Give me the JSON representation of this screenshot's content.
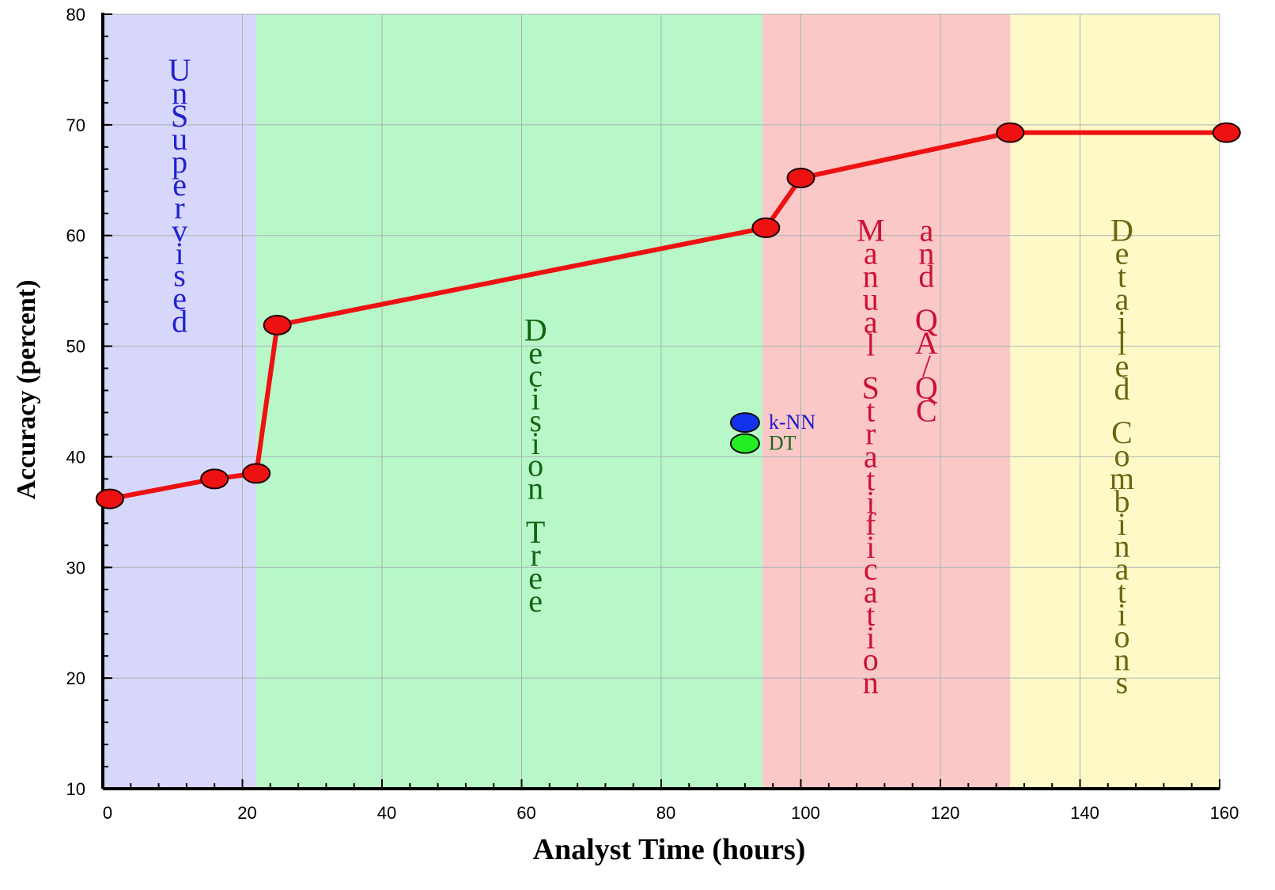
{
  "chart_data": {
    "type": "line",
    "title": "",
    "xlabel": "Analyst Time (hours)",
    "ylabel": "Accuracy (percent)",
    "xlim": [
      0,
      160
    ],
    "ylim": [
      10,
      80
    ],
    "xticks": [
      0,
      20,
      40,
      60,
      80,
      100,
      120,
      140,
      160
    ],
    "yticks": [
      10,
      20,
      30,
      40,
      50,
      60,
      70,
      80
    ],
    "x_minor_step": 4,
    "y_minor_step": 2,
    "grid": true,
    "series": [
      {
        "color": "#ee1111",
        "points": [
          {
            "x": 1,
            "y": 36.2
          },
          {
            "x": 16,
            "y": 38.0
          },
          {
            "x": 22,
            "y": 38.5
          },
          {
            "x": 25,
            "y": 51.9
          },
          {
            "x": 95,
            "y": 60.7
          },
          {
            "x": 100,
            "y": 65.2
          },
          {
            "x": 130,
            "y": 69.3
          },
          {
            "x": 161,
            "y": 69.3
          }
        ]
      }
    ],
    "extra_points": [
      {
        "name": "k-NN",
        "x": 92,
        "y": 43.1,
        "color": "#1133ee",
        "label_color": "#1a1acc"
      },
      {
        "name": "DT",
        "x": 92,
        "y": 41.2,
        "color": "#22ee22",
        "label_color": "#1a6a1a"
      }
    ],
    "regions": [
      {
        "x0": 0,
        "x1": 22,
        "color": "#d7d7fb",
        "text_color": "#2222cc",
        "label_columns": [
          "UnSupervised"
        ],
        "label_x": 11,
        "label_top": 75
      },
      {
        "x0": 22,
        "x1": 94.5,
        "color": "#b8f7c8",
        "text_color": "#116611",
        "label_columns": [
          "Decision Tree"
        ],
        "label_x": 62,
        "label_top": 51.5
      },
      {
        "x0": 94.5,
        "x1": 130,
        "color": "#fbc8c8",
        "text_color": "#cc1133",
        "label_columns": [
          "Manual Stratification",
          "and QA/QC"
        ],
        "label_column_x": [
          110,
          118
        ],
        "label_top": 60.5
      },
      {
        "x0": 130,
        "x1": 160,
        "color": "#fdfac8",
        "text_color": "#6b6612",
        "label_columns": [
          "Detailed Combinations"
        ],
        "label_x": 146,
        "label_top": 60.5
      }
    ]
  }
}
